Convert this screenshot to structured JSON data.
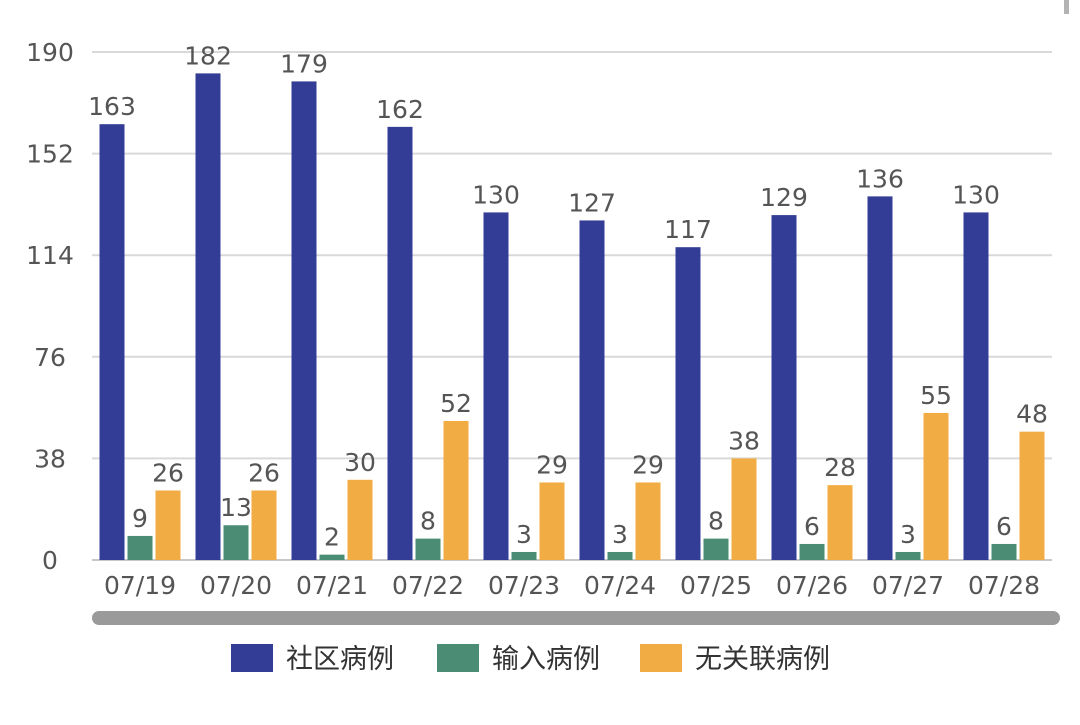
{
  "chart_data": {
    "type": "bar",
    "categories": [
      "07/19",
      "07/20",
      "07/21",
      "07/22",
      "07/23",
      "07/24",
      "07/25",
      "07/26",
      "07/27",
      "07/28"
    ],
    "series": [
      {
        "name": "社区病例",
        "color": "#343d96",
        "values": [
          163,
          182,
          179,
          162,
          130,
          127,
          117,
          129,
          136,
          130
        ]
      },
      {
        "name": "输入病例",
        "color": "#4a8c74",
        "values": [
          9,
          13,
          2,
          8,
          3,
          3,
          8,
          6,
          3,
          6
        ]
      },
      {
        "name": "无关联病例",
        "color": "#f1ad44",
        "values": [
          26,
          26,
          30,
          52,
          29,
          29,
          38,
          28,
          55,
          48
        ]
      }
    ],
    "yticks": [
      0,
      38,
      76,
      114,
      152,
      190
    ],
    "ylim": [
      0,
      190
    ],
    "grid": true,
    "legend_position": "bottom",
    "title": "",
    "xlabel": "",
    "ylabel": ""
  }
}
